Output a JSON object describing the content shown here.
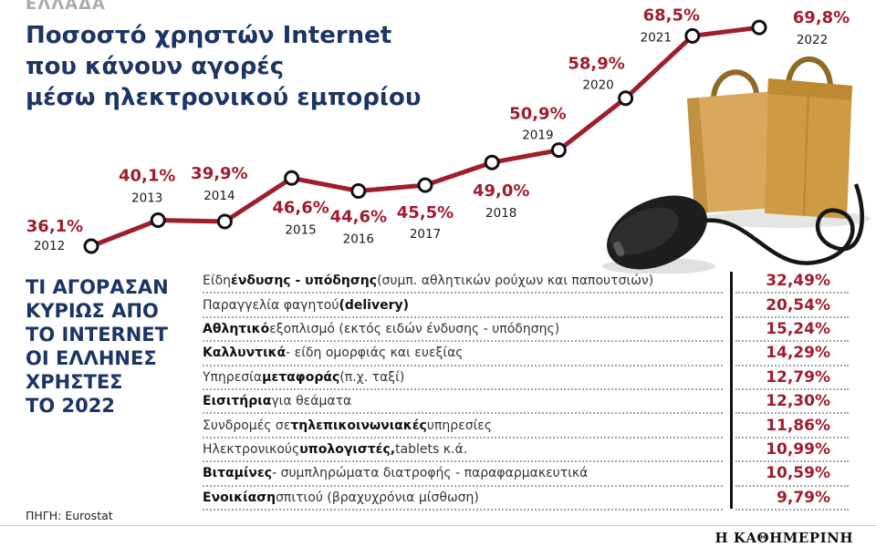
{
  "kicker": "ΕΛΛΑΔΑ",
  "title": "Ποσοστό χρηστών Internet\nπου κάνουν αγορές\nμέσω ηλεκτρονικού εμπορίου",
  "chart_data": {
    "type": "line",
    "title": "Ποσοστό χρηστών Internet που κάνουν αγορές μέσω ηλεκτρονικού εμπορίου",
    "x": [
      "2012",
      "2013",
      "2014",
      "2015",
      "2016",
      "2017",
      "2018",
      "2019",
      "2020",
      "2021",
      "2022"
    ],
    "values": [
      36.1,
      40.1,
      39.9,
      46.6,
      44.6,
      45.5,
      49.0,
      50.9,
      58.9,
      68.5,
      69.8
    ],
    "value_labels": [
      "36,1%",
      "40,1%",
      "39,9%",
      "46,6%",
      "44,6%",
      "45,5%",
      "49,0%",
      "50,9%",
      "58,9%",
      "68,5%",
      "69,8%"
    ],
    "ylim": [
      34,
      72
    ],
    "grid": false,
    "legend": false,
    "line_color": "#A01D2E",
    "marker_fill": "#FFFFFF",
    "marker_stroke": "#111111",
    "value_label_color": "#A01D2E",
    "year_label_color": "#1A1A1A"
  },
  "table": {
    "heading": "ΤΙ ΑΓΟΡΑΣΑΝ\nΚΥΡΙΩΣ ΑΠΟ\nΤΟ INTERNET\nΟΙ ΕΛΛΗΝΕΣ\nΧΡΗΣΤΕΣ\nΤΟ 2022",
    "rows": [
      {
        "segments": [
          {
            "t": "Είδη ",
            "b": false
          },
          {
            "t": "ένδυσης - υπόδησης",
            "b": true
          },
          {
            "t": " (συμπ. αθλητικών ρούχων και παπουτσιών)",
            "b": false
          }
        ],
        "value": "32,49%"
      },
      {
        "segments": [
          {
            "t": "Παραγγελία φαγητού ",
            "b": false
          },
          {
            "t": "(delivery)",
            "b": true
          }
        ],
        "value": "20,54%"
      },
      {
        "segments": [
          {
            "t": "Αθλητικό",
            "b": true
          },
          {
            "t": " εξοπλισμό (εκτός ειδών ένδυσης - υπόδησης)",
            "b": false
          }
        ],
        "value": "15,24%"
      },
      {
        "segments": [
          {
            "t": "Καλλυντικά",
            "b": true
          },
          {
            "t": " - είδη ομορφιάς και ευεξίας",
            "b": false
          }
        ],
        "value": "14,29%"
      },
      {
        "segments": [
          {
            "t": "Υπηρεσία ",
            "b": false
          },
          {
            "t": "μεταφοράς",
            "b": true
          },
          {
            "t": " (π.χ. ταξί)",
            "b": false
          }
        ],
        "value": "12,79%"
      },
      {
        "segments": [
          {
            "t": "Εισιτήρια",
            "b": true
          },
          {
            "t": " για θεάματα",
            "b": false
          }
        ],
        "value": "12,30%"
      },
      {
        "segments": [
          {
            "t": "Συνδρομές σε ",
            "b": false
          },
          {
            "t": "τηλεπικοινωνιακές",
            "b": true
          },
          {
            "t": " υπηρεσίες",
            "b": false
          }
        ],
        "value": "11,86%"
      },
      {
        "segments": [
          {
            "t": "Ηλεκτρονικούς ",
            "b": false
          },
          {
            "t": "υπολογιστές,",
            "b": true
          },
          {
            "t": " tablets κ.ά.",
            "b": false
          }
        ],
        "value": "10,99%"
      },
      {
        "segments": [
          {
            "t": "Βιταμίνες",
            "b": true
          },
          {
            "t": " - συμπληρώματα διατροφής - παραφαρμακευτικά",
            "b": false
          }
        ],
        "value": "10,59%"
      },
      {
        "segments": [
          {
            "t": "Ενοικίαση",
            "b": true
          },
          {
            "t": " σπιτιού (βραχυχρόνια μίσθωση)",
            "b": false
          }
        ],
        "value": "9,79%"
      }
    ]
  },
  "source": "ΠΗΓΗ: Eurostat",
  "brand": "Η ΚΑΘΗΜΕΡΙΝΗ",
  "colors": {
    "accent": "#A01D2E",
    "navy": "#1C3564",
    "kicker_gray": "#ACACAC"
  }
}
